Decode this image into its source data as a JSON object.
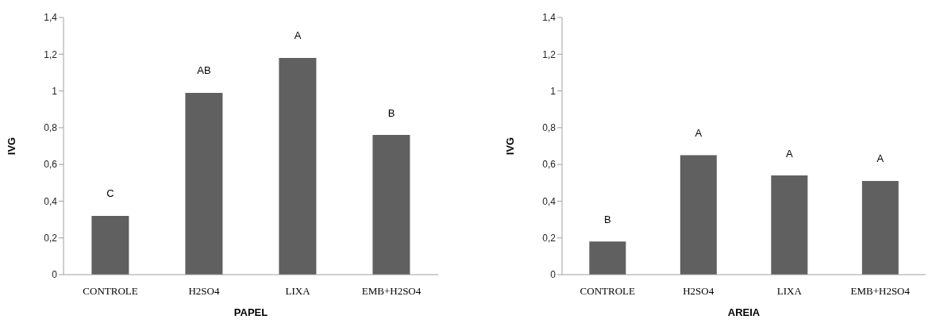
{
  "chart_data": [
    {
      "type": "bar",
      "xlabel": "PAPEL",
      "ylabel": "IVG",
      "categories": [
        "CONTROLE",
        "H2SO4",
        "LIXA",
        "EMB+H2SO4"
      ],
      "values": [
        0.32,
        0.99,
        1.18,
        0.76
      ],
      "color": "#606060",
      "ylim": [
        0,
        1.4
      ],
      "yticks": [
        {
          "value": 0,
          "label": "0"
        },
        {
          "value": 0.2,
          "label": "0,2"
        },
        {
          "value": 0.4,
          "label": "0,4"
        },
        {
          "value": 0.6,
          "label": "0,6"
        },
        {
          "value": 0.8,
          "label": "0,8"
        },
        {
          "value": 1,
          "label": "1"
        },
        {
          "value": 1.2,
          "label": "1,2"
        },
        {
          "value": 1.4,
          "label": "1,4"
        }
      ],
      "grid": false,
      "legend": false,
      "annotations": [
        "C",
        "AB",
        "A",
        "B"
      ]
    },
    {
      "type": "bar",
      "xlabel": "AREIA",
      "ylabel": "IVG",
      "categories": [
        "CONTROLE",
        "H2SO4",
        "LIXA",
        "EMB+H2SO4"
      ],
      "values": [
        0.18,
        0.65,
        0.54,
        0.51
      ],
      "color": "#606060",
      "ylim": [
        0,
        1.4
      ],
      "yticks": [
        {
          "value": 0,
          "label": "0"
        },
        {
          "value": 0.2,
          "label": "0,2"
        },
        {
          "value": 0.4,
          "label": "0,4"
        },
        {
          "value": 0.6,
          "label": "0,6"
        },
        {
          "value": 0.8,
          "label": "0,8"
        },
        {
          "value": 1,
          "label": "1"
        },
        {
          "value": 1.2,
          "label": "1,2"
        },
        {
          "value": 1.4,
          "label": "1,4"
        }
      ],
      "grid": false,
      "legend": false,
      "annotations": [
        "B",
        "A",
        "A",
        "A"
      ]
    }
  ]
}
